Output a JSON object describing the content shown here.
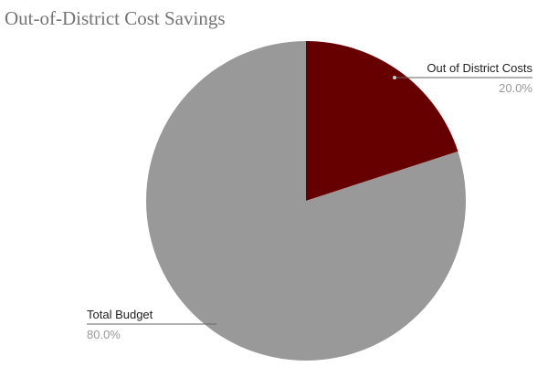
{
  "chart_data": {
    "type": "pie",
    "title": "Out-of-District Cost Savings",
    "categories": [
      "Out of District Costs",
      "Total Budget"
    ],
    "values": [
      20,
      80
    ],
    "value_labels": [
      "20.0%",
      "80.0%"
    ],
    "colors": [
      "#660000",
      "#999999"
    ]
  }
}
